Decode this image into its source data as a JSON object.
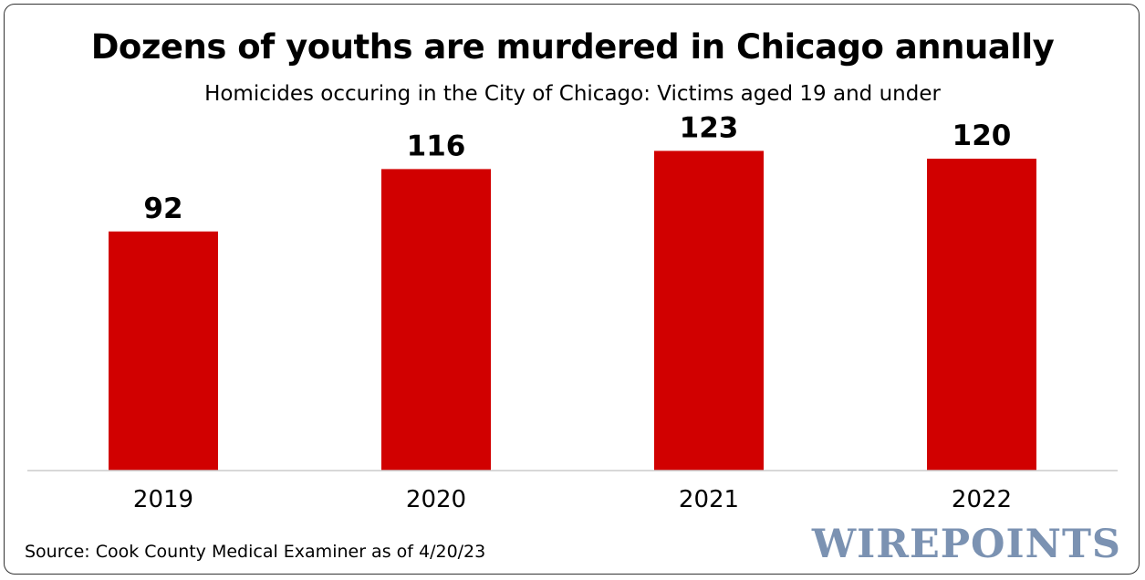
{
  "chart_data": {
    "type": "bar",
    "title": "Dozens of youths are murdered in Chicago annually",
    "subtitle": "Homicides occuring in the City of Chicago: Victims aged 19 and under",
    "categories": [
      "2019",
      "2020",
      "2021",
      "2022"
    ],
    "values": [
      92,
      116,
      123,
      120
    ],
    "xlabel": "",
    "ylabel": "",
    "ylim": [
      0,
      140
    ],
    "grid": false,
    "bar_color": "#d10000"
  },
  "source": "Source: Cook County Medical Examiner as of 4/20/23",
  "brand": "WIREPOINTS",
  "colors": {
    "bar": "#d10000",
    "brand": "#7b92b2",
    "axis": "#cccccc"
  }
}
